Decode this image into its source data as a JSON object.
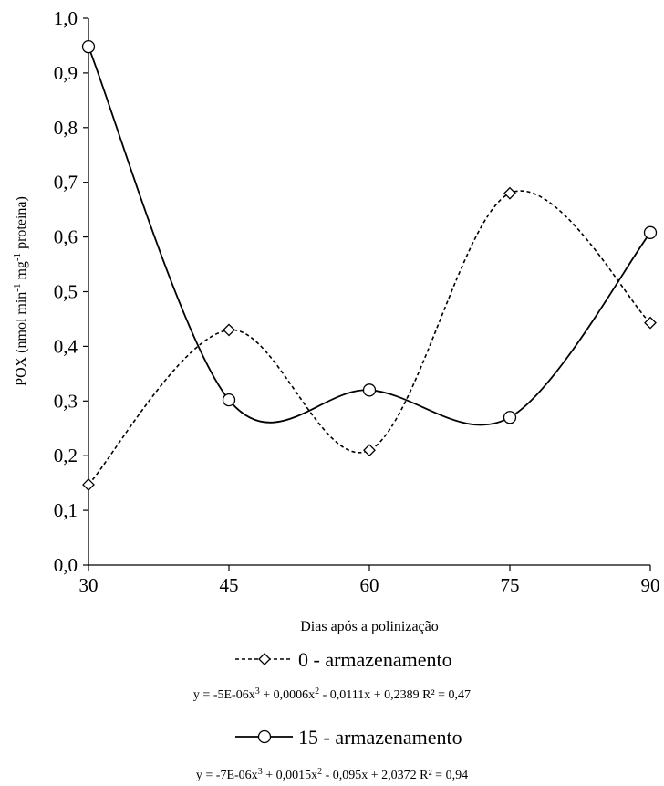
{
  "chart_data": {
    "type": "line",
    "xlabel": "Dias após a polinização",
    "ylabel_main": "POX (nmol min",
    "ylabel_sup1": "-1",
    "ylabel_mid": " mg",
    "ylabel_sup2": "-1",
    "ylabel_end": " proteína)",
    "x_ticks": [
      "30",
      "45",
      "60",
      "75",
      "90"
    ],
    "y_ticks": [
      "0,0",
      "0,1",
      "0,2",
      "0,3",
      "0,4",
      "0,5",
      "0,6",
      "0,7",
      "0,8",
      "0,9",
      "1,0"
    ],
    "xlim": [
      30,
      90
    ],
    "ylim": [
      0,
      1
    ],
    "grid": false,
    "x": [
      30,
      45,
      60,
      75,
      90
    ],
    "series": [
      {
        "name": "0 - armazenamento",
        "marker": "diamond",
        "line_style": "dashed",
        "values": [
          0.147,
          0.43,
          0.21,
          0.68,
          0.443
        ],
        "equation_prefix": "y = -5E-06x",
        "equation_mid": " + 0,0006x",
        "equation_suffix": " - 0,0111x + 0,2389    R² = 0,47"
      },
      {
        "name": "15 - armazenamento",
        "marker": "circle",
        "line_style": "solid",
        "values": [
          0.948,
          0.302,
          0.32,
          0.27,
          0.608
        ],
        "equation_prefix": "y = -7E-06x",
        "equation_mid": " + 0,0015x",
        "equation_suffix": " - 0,095x + 2,0372    R² = 0,94"
      }
    ],
    "legend_placement": "bottom"
  }
}
